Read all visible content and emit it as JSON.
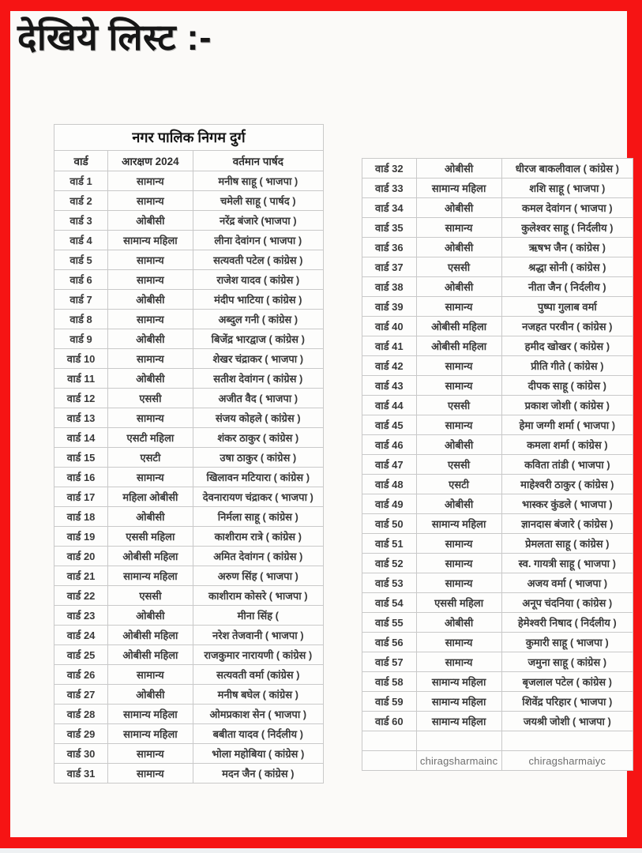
{
  "page": {
    "heading": "देखिये लिस्ट :-"
  },
  "colors": {
    "frame_red": "#f61414",
    "cell_border": "#c9c9c9",
    "text": "#3a3a3a"
  },
  "left_table": {
    "title": "नगर पालिक निगम दुर्ग",
    "headers": [
      "वार्ड",
      "आरक्षण 2024",
      "वर्तमान पार्षद"
    ],
    "rows": [
      [
        "वार्ड 1",
        "सामान्य",
        "मनीष साहू ( भाजपा )"
      ],
      [
        "वार्ड 2",
        "सामान्य",
        "चमेली साहू ( पार्षद )"
      ],
      [
        "वार्ड 3",
        "ओबीसी",
        "नरेंद्र बंजारे (भाजपा )"
      ],
      [
        "वार्ड 4",
        "सामान्य महिला",
        "लीना देवांगन ( भाजपा )"
      ],
      [
        "वार्ड 5",
        "सामान्य",
        "सत्यवती पटेल ( कांग्रेस )"
      ],
      [
        "वार्ड 6",
        "सामान्य",
        "राजेश यादव ( कांग्रेस )"
      ],
      [
        "वार्ड 7",
        "ओबीसी",
        "मंदीप भाटिया ( कांग्रेस )"
      ],
      [
        "वार्ड 8",
        "सामान्य",
        "अब्दुल गनी ( कांग्रेस )"
      ],
      [
        "वार्ड 9",
        "ओबीसी",
        "बिजेंद्र भारद्वाज ( कांग्रेस )"
      ],
      [
        "वार्ड 10",
        "सामान्य",
        "शेखर चंद्राकर ( भाजपा )"
      ],
      [
        "वार्ड 11",
        "ओबीसी",
        "सतीश देवांगन ( कांग्रेस )"
      ],
      [
        "वार्ड 12",
        "एससी",
        "अजीत वैद ( भाजपा )"
      ],
      [
        "वार्ड 13",
        "सामान्य",
        "संजय कोहले ( कांग्रेस )"
      ],
      [
        "वार्ड 14",
        "एसटी महिला",
        "शंकर ठाकुर ( कांग्रेस )"
      ],
      [
        "वार्ड 15",
        "एसटी",
        "उषा ठाकुर ( कांग्रेस )"
      ],
      [
        "वार्ड 16",
        "सामान्य",
        "खिलावन मटियारा ( कांग्रेस )"
      ],
      [
        "वार्ड 17",
        "महिला ओबीसी",
        "देवनारायण चंद्राकर ( भाजपा )"
      ],
      [
        "वार्ड 18",
        "ओबीसी",
        "निर्मला साहू ( कांग्रेस )"
      ],
      [
        "वार्ड 19",
        "एससी महिला",
        "काशीराम रात्रे ( कांग्रेस )"
      ],
      [
        "वार्ड 20",
        "ओबीसी महिला",
        "अमित देवांगन ( कांग्रेस )"
      ],
      [
        "वार्ड 21",
        "सामान्य महिला",
        "अरुण सिंह ( भाजपा )"
      ],
      [
        "वार्ड 22",
        "एससी",
        "काशीराम कोसरे ( भाजपा )"
      ],
      [
        "वार्ड 23",
        "ओबीसी",
        "मीना सिंह ("
      ],
      [
        "वार्ड 24",
        "ओबीसी महिला",
        "नरेश तेजवानी ( भाजपा )"
      ],
      [
        "वार्ड 25",
        "ओबीसी महिला",
        "राजकुमार नारायणी ( कांग्रेस )"
      ],
      [
        "वार्ड 26",
        "सामान्य",
        "सत्यवती वर्मा (कांग्रेस )"
      ],
      [
        "वार्ड 27",
        "ओबीसी",
        "मनीष बघेल ( कांग्रेस )"
      ],
      [
        "वार्ड 28",
        "सामान्य महिला",
        "ओमप्रकाश सेन ( भाजपा )"
      ],
      [
        "वार्ड 29",
        "सामान्य महिला",
        "बबीता यादव ( निर्दलीय )"
      ],
      [
        "वार्ड 30",
        "सामान्य",
        "भोला महोबिया ( कांग्रेस )"
      ],
      [
        "वार्ड 31",
        "सामान्य",
        "मदन जैन ( कांग्रेस )"
      ]
    ]
  },
  "right_table": {
    "rows": [
      [
        "वार्ड 32",
        "ओबीसी",
        "धीरज बाकलीवाल ( कांग्रेस )"
      ],
      [
        "वार्ड 33",
        "सामान्य महिला",
        "शशि साहू ( भाजपा )"
      ],
      [
        "वार्ड 34",
        "ओबीसी",
        "कमल देवांगन ( भाजपा )"
      ],
      [
        "वार्ड 35",
        "सामान्य",
        "कुलेश्वर साहू ( निर्दलीय )"
      ],
      [
        "वार्ड 36",
        "ओबीसी",
        "ऋषभ जैन ( कांग्रेस )"
      ],
      [
        "वार्ड 37",
        "एससी",
        "श्रद्धा सोनी ( कांग्रेस )"
      ],
      [
        "वार्ड 38",
        "ओबीसी",
        "नीता जैन ( निर्दलीय )"
      ],
      [
        "वार्ड 39",
        "सामान्य",
        "पुष्पा गुलाब वर्मा"
      ],
      [
        "वार्ड 40",
        "ओबीसी महिला",
        "नजहत परवीन ( कांग्रेस )"
      ],
      [
        "वार्ड 41",
        "ओबीसी महिला",
        "हमीद खोखर ( कांग्रेस )"
      ],
      [
        "वार्ड 42",
        "सामान्य",
        "प्रीति गीते ( कांग्रेस )"
      ],
      [
        "वार्ड 43",
        "सामान्य",
        "दीपक साहू ( कांग्रेस )"
      ],
      [
        "वार्ड 44",
        "एससी",
        "प्रकाश जोशी ( कांग्रेस )"
      ],
      [
        "वार्ड 45",
        "सामान्य",
        "हेमा जग्गी शर्मा ( भाजपा )"
      ],
      [
        "वार्ड 46",
        "ओबीसी",
        "कमला शर्मा ( कांग्रेस )"
      ],
      [
        "वार्ड 47",
        "एससी",
        "कविता तांडी ( भाजपा )"
      ],
      [
        "वार्ड 48",
        "एसटी",
        "माहेश्वरी ठाकुर ( कांग्रेस )"
      ],
      [
        "वार्ड 49",
        "ओबीसी",
        "भास्कर कुंडले ( भाजपा )"
      ],
      [
        "वार्ड 50",
        "सामान्य महिला",
        "ज्ञानदास बंजारे ( कांग्रेस )"
      ],
      [
        "वार्ड 51",
        "सामान्य",
        "प्रेमलता साहू ( कांग्रेस )"
      ],
      [
        "वार्ड 52",
        "सामान्य",
        "स्व. गायत्री साहू ( भाजपा )"
      ],
      [
        "वार्ड 53",
        "सामान्य",
        "अजय वर्मा ( भाजपा )"
      ],
      [
        "वार्ड 54",
        "एससी महिला",
        "अनूप चंदनिया ( कांग्रेस )"
      ],
      [
        "वार्ड 55",
        "ओबीसी",
        "हेमेश्वरी निषाद ( निर्दलीय )"
      ],
      [
        "वार्ड 56",
        "सामान्य",
        "कुमारी साहू ( भाजपा )"
      ],
      [
        "वार्ड 57",
        "सामान्य",
        "जमुना साहू ( कांग्रेस )"
      ],
      [
        "वार्ड 58",
        "सामान्य महिला",
        "बृजलाल पटेल ( कांग्रेस )"
      ],
      [
        "वार्ड 59",
        "सामान्य महिला",
        "शिवेंद्र परिहार ( भाजपा )"
      ],
      [
        "वार्ड 60",
        "सामान्य महिला",
        "जयश्री जोशी ( भाजपा )"
      ],
      [
        "",
        "",
        ""
      ],
      [
        "",
        "chiragsharmainc",
        "chiragsharmaiyc"
      ]
    ]
  }
}
